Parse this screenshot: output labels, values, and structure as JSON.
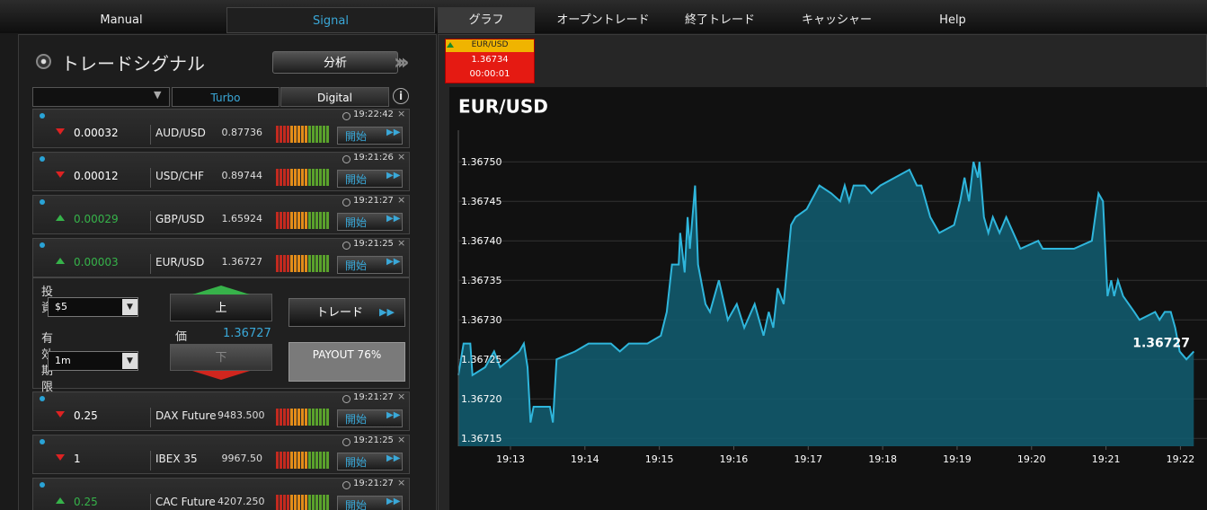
{
  "nav": {
    "tabs": [
      "Manual",
      "Signal",
      "グラフ",
      "オープントレード",
      "終了トレード",
      "キャッシャー",
      "Help"
    ]
  },
  "signal_panel": {
    "title": "トレードシグナル",
    "analyze_button": "分析",
    "filter_tabs": [
      "Turbo",
      "Digital"
    ],
    "rows": [
      {
        "time": "19:22:42",
        "trend": "down",
        "change": "0.00032",
        "pair": "AUD/USD",
        "price": "0.87736",
        "button": "開始"
      },
      {
        "time": "19:21:26",
        "trend": "down",
        "change": "0.00012",
        "pair": "USD/CHF",
        "price": "0.89744",
        "button": "開始"
      },
      {
        "time": "19:21:27",
        "trend": "up",
        "change": "0.00029",
        "pair": "GBP/USD",
        "price": "1.65924",
        "button": "開始"
      },
      {
        "time": "19:21:25",
        "trend": "up",
        "change": "0.00003",
        "pair": "EUR/USD",
        "price": "1.36727",
        "button": "開始"
      },
      {
        "time": "19:21:27",
        "trend": "down",
        "change": "0.25",
        "pair": "DAX Future",
        "price": "9483.500",
        "button": "開始"
      },
      {
        "time": "19:21:25",
        "trend": "down",
        "change": "1",
        "pair": "IBEX 35",
        "price": "9967.50",
        "button": "開始"
      },
      {
        "time": "19:21:27",
        "trend": "up",
        "change": "0.25",
        "pair": "CAC Future",
        "price": "4207.250",
        "button": "開始"
      }
    ],
    "trade": {
      "investment_label": [
        "投",
        "資"
      ],
      "investment": "$5",
      "expiry_label": [
        "有",
        "効",
        "期",
        "限"
      ],
      "expiry": "1m",
      "up_button": "上",
      "price_label": "価",
      "price": "1.36727",
      "down_button": "下",
      "trade_button": "トレード",
      "payout": "PAYOUT 76%"
    }
  },
  "chart_tab": {
    "pair": "EUR/USD",
    "price": "1.36734",
    "timer": "00:00:01"
  },
  "chart_data": {
    "type": "area",
    "title": "EUR/USD",
    "color": "#2fb6dc",
    "fill_color": "#125a6d",
    "grid": true,
    "last_price_label": "1.36727",
    "x": [
      12.3,
      12.37,
      12.46,
      12.49,
      12.66,
      12.78,
      12.86,
      13.12,
      13.18,
      13.23,
      13.27,
      13.31,
      13.53,
      13.57,
      13.62,
      13.87,
      14.05,
      14.35,
      14.47,
      14.59,
      14.84,
      15.02,
      15.1,
      15.17,
      15.26,
      15.28,
      15.34,
      15.38,
      15.41,
      15.48,
      15.52,
      15.62,
      15.68,
      15.8,
      15.92,
      16.04,
      16.14,
      16.28,
      16.4,
      16.47,
      16.53,
      16.59,
      16.67,
      16.77,
      16.83,
      16.98,
      17.15,
      17.31,
      17.43,
      17.49,
      17.55,
      17.61,
      17.76,
      17.85,
      17.97,
      18.36,
      18.46,
      18.52,
      18.64,
      18.76,
      18.96,
      19.04,
      19.1,
      19.16,
      19.22,
      19.28,
      19.3,
      19.36,
      19.42,
      19.48,
      19.57,
      19.66,
      19.85,
      20.09,
      20.15,
      20.29,
      20.57,
      20.81,
      20.87,
      20.9,
      20.96,
      21.02,
      21.07,
      21.11,
      21.16,
      21.23,
      21.38,
      21.45,
      21.66,
      21.72,
      21.79,
      21.87,
      21.93,
      21.99,
      22.08,
      22.18
    ],
    "values": [
      1.36723,
      1.36727,
      1.36727,
      1.36723,
      1.36724,
      1.36726,
      1.36724,
      1.36726,
      1.36727,
      1.36724,
      1.36717,
      1.36719,
      1.36719,
      1.36717,
      1.36725,
      1.36726,
      1.36727,
      1.36727,
      1.36726,
      1.36727,
      1.36727,
      1.36728,
      1.36731,
      1.36737,
      1.36737,
      1.36741,
      1.36736,
      1.36743,
      1.36739,
      1.36747,
      1.36737,
      1.36732,
      1.36731,
      1.36735,
      1.3673,
      1.36732,
      1.36729,
      1.36732,
      1.36728,
      1.36731,
      1.36729,
      1.36734,
      1.36732,
      1.36742,
      1.36743,
      1.36744,
      1.36747,
      1.36746,
      1.36745,
      1.36747,
      1.36745,
      1.36747,
      1.36747,
      1.36746,
      1.36747,
      1.36749,
      1.36747,
      1.36747,
      1.36743,
      1.36741,
      1.36742,
      1.36745,
      1.36748,
      1.36745,
      1.3675,
      1.36748,
      1.3675,
      1.36743,
      1.36741,
      1.36743,
      1.36741,
      1.36743,
      1.36739,
      1.3674,
      1.36739,
      1.36739,
      1.36739,
      1.3674,
      1.36744,
      1.36746,
      1.36745,
      1.36733,
      1.36735,
      1.36733,
      1.36735,
      1.36733,
      1.36731,
      1.3673,
      1.36731,
      1.3673,
      1.36731,
      1.36731,
      1.36729,
      1.36726,
      1.36725,
      1.36726
    ],
    "xlim": [
      12.3,
      22.2
    ],
    "xticks": [
      {
        "value": 13,
        "label": "19:13"
      },
      {
        "value": 14,
        "label": "19:14"
      },
      {
        "value": 15,
        "label": "19:15"
      },
      {
        "value": 16,
        "label": "19:16"
      },
      {
        "value": 17,
        "label": "19:17"
      },
      {
        "value": 18,
        "label": "19:18"
      },
      {
        "value": 19,
        "label": "19:19"
      },
      {
        "value": 20,
        "label": "19:20"
      },
      {
        "value": 21,
        "label": "19:21"
      },
      {
        "value": 22,
        "label": "19:22"
      }
    ],
    "ylim": [
      1.36714,
      1.36754
    ],
    "yticks": [
      1.36715,
      {
        "value": 1.3672,
        "label": "1.36720"
      },
      1.36725,
      {
        "value": 1.3673,
        "label": "1.36730"
      },
      1.36735,
      {
        "value": 1.3674,
        "label": "1.36740"
      },
      1.36745,
      {
        "value": 1.3675,
        "label": "1.36750"
      }
    ]
  }
}
